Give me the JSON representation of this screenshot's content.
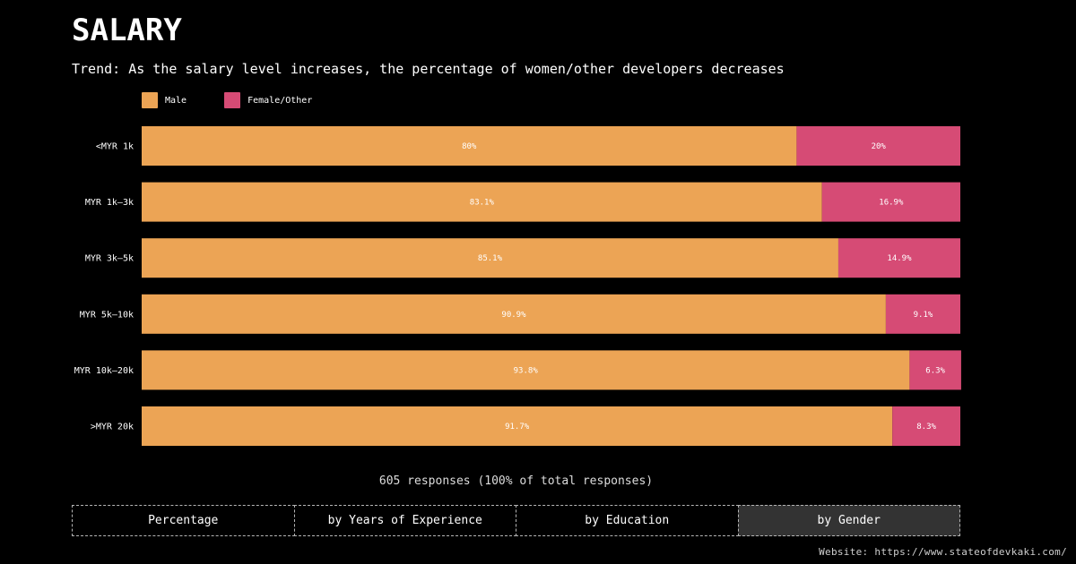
{
  "title": "SALARY",
  "subtitle": "Trend: As the salary level increases, the percentage of women/other developers decreases",
  "legend": {
    "male": "Male",
    "female": "Female/Other"
  },
  "colors": {
    "male": "#eca455",
    "female": "#d64b75",
    "background": "#000000"
  },
  "chart_data": {
    "type": "bar",
    "orientation": "horizontal",
    "stacked": true,
    "categories": [
      "<MYR 1k",
      "MYR 1k–3k",
      "MYR 3k–5k",
      "MYR 5k–10k",
      "MYR 10k–20k",
      ">MYR 20k"
    ],
    "series": [
      {
        "name": "Male",
        "values": [
          80,
          83.1,
          85.1,
          90.9,
          93.8,
          91.7
        ],
        "labels": [
          "80%",
          "83.1%",
          "85.1%",
          "90.9%",
          "93.8%",
          "91.7%"
        ]
      },
      {
        "name": "Female/Other",
        "values": [
          20,
          16.9,
          14.9,
          9.1,
          6.3,
          8.3
        ],
        "labels": [
          "20%",
          "16.9%",
          "14.9%",
          "9.1%",
          "6.3%",
          "8.3%"
        ]
      }
    ],
    "xlim": [
      0,
      100
    ],
    "grid": false,
    "legend_position": "top-left"
  },
  "responses_text": "605 responses (100% of total responses)",
  "tabs": [
    {
      "label": "Percentage",
      "active": false
    },
    {
      "label": "by Years of Experience",
      "active": false
    },
    {
      "label": "by Education",
      "active": false
    },
    {
      "label": "by Gender",
      "active": true
    }
  ],
  "website": "Website: https://www.stateofdevkaki.com/"
}
